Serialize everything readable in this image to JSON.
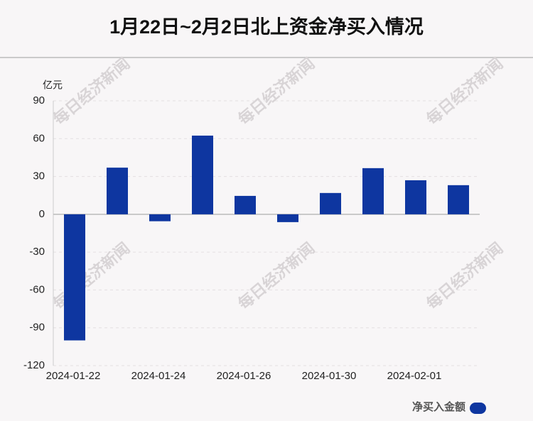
{
  "chart_data": {
    "type": "bar",
    "title": "1月22日~2月2日北上资金净买入情况",
    "y_unit": "亿元",
    "watermark": "每日经济新闻",
    "categories": [
      "2024-01-22",
      null,
      "2024-01-24",
      null,
      "2024-01-26",
      null,
      "2024-01-30",
      null,
      "2024-02-01",
      null
    ],
    "series": [
      {
        "name": "净买入金额",
        "color": "#0e36a0",
        "values": [
          -100,
          37,
          -5.5,
          62.4,
          14.6,
          -6.2,
          16.9,
          36.6,
          27,
          23.1
        ]
      }
    ],
    "ylim": [
      -120,
      90
    ],
    "yticks": [
      -120,
      -90,
      -60,
      -30,
      0,
      30,
      60,
      90
    ],
    "grid": true,
    "legend": "bottom-right"
  }
}
